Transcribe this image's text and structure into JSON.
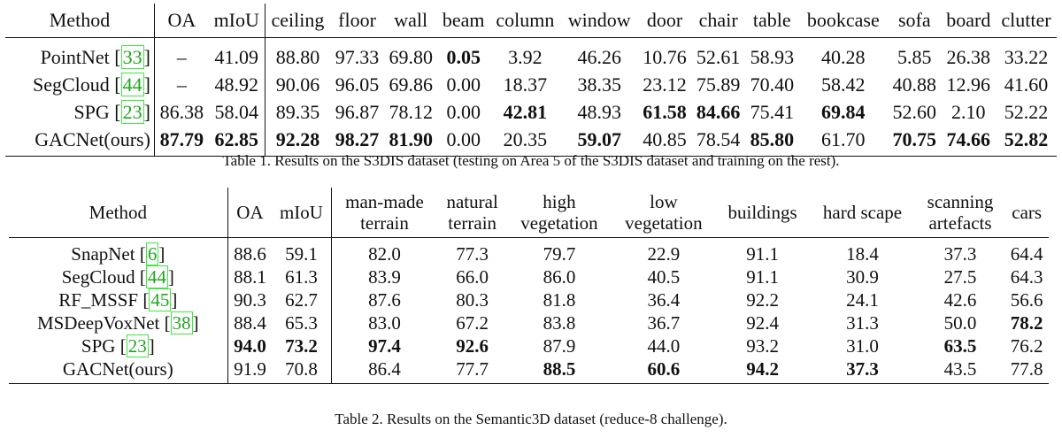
{
  "table1": {
    "headers": [
      "Method",
      "OA",
      "mIoU",
      "ceiling",
      "floor",
      "wall",
      "beam",
      "column",
      "window",
      "door",
      "chair",
      "table",
      "bookcase",
      "sofa",
      "board",
      "clutter"
    ],
    "rows": [
      {
        "name": "PointNet",
        "ref": "33",
        "values": [
          "–",
          "41.09",
          "88.80",
          "97.33",
          "69.80",
          "0.05",
          "3.92",
          "46.26",
          "10.76",
          "52.61",
          "58.93",
          "40.28",
          "5.85",
          "26.38",
          "33.22"
        ],
        "bold": [
          5
        ]
      },
      {
        "name": "SegCloud",
        "ref": "44",
        "values": [
          "–",
          "48.92",
          "90.06",
          "96.05",
          "69.86",
          "0.00",
          "18.37",
          "38.35",
          "23.12",
          "75.89",
          "70.40",
          "58.42",
          "40.88",
          "12.96",
          "41.60"
        ],
        "bold": []
      },
      {
        "name": "SPG",
        "ref": "23",
        "values": [
          "86.38",
          "58.04",
          "89.35",
          "96.87",
          "78.12",
          "0.00",
          "42.81",
          "48.93",
          "61.58",
          "84.66",
          "75.41",
          "69.84",
          "52.60",
          "2.10",
          "52.22"
        ],
        "bold": [
          6,
          8,
          9,
          11
        ]
      },
      {
        "name": "GACNet(ours)",
        "ref": "",
        "values": [
          "87.79",
          "62.85",
          "92.28",
          "98.27",
          "81.90",
          "0.00",
          "20.35",
          "59.07",
          "40.85",
          "78.54",
          "85.80",
          "61.70",
          "70.75",
          "74.66",
          "52.82"
        ],
        "bold": [
          0,
          1,
          2,
          3,
          4,
          7,
          10,
          12,
          13,
          14
        ]
      }
    ],
    "caption": "Table 1. Results on the S3DIS dataset (testing on Area 5 of the S3DIS dataset and training on the rest)."
  },
  "table2": {
    "headers": [
      [
        "Method"
      ],
      [
        "OA"
      ],
      [
        "mIoU"
      ],
      [
        "man-made",
        "terrain"
      ],
      [
        "natural",
        "terrain"
      ],
      [
        "high",
        "vegetation"
      ],
      [
        "low",
        "vegetation"
      ],
      [
        "buildings"
      ],
      [
        "hard scape"
      ],
      [
        "scanning",
        "artefacts"
      ],
      [
        "cars"
      ]
    ],
    "rows": [
      {
        "name": "SnapNet",
        "ref": "6",
        "values": [
          "88.6",
          "59.1",
          "82.0",
          "77.3",
          "79.7",
          "22.9",
          "91.1",
          "18.4",
          "37.3",
          "64.4"
        ],
        "bold": []
      },
      {
        "name": "SegCloud",
        "ref": "44",
        "values": [
          "88.1",
          "61.3",
          "83.9",
          "66.0",
          "86.0",
          "40.5",
          "91.1",
          "30.9",
          "27.5",
          "64.3"
        ],
        "bold": []
      },
      {
        "name": "RF_MSSF",
        "ref": "45",
        "values": [
          "90.3",
          "62.7",
          "87.6",
          "80.3",
          "81.8",
          "36.4",
          "92.2",
          "24.1",
          "42.6",
          "56.6"
        ],
        "bold": []
      },
      {
        "name": "MSDeepVoxNet",
        "ref": "38",
        "values": [
          "88.4",
          "65.3",
          "83.0",
          "67.2",
          "83.8",
          "36.7",
          "92.4",
          "31.3",
          "50.0",
          "78.2"
        ],
        "bold": [
          9
        ]
      },
      {
        "name": "SPG",
        "ref": "23",
        "values": [
          "94.0",
          "73.2",
          "97.4",
          "92.6",
          "87.9",
          "44.0",
          "93.2",
          "31.0",
          "63.5",
          "76.2"
        ],
        "bold": [
          0,
          1,
          2,
          3,
          8
        ]
      },
      {
        "name": "GACNet(ours)",
        "ref": "",
        "values": [
          "91.9",
          "70.8",
          "86.4",
          "77.7",
          "88.5",
          "60.6",
          "94.2",
          "37.3",
          "43.5",
          "77.8"
        ],
        "bold": [
          4,
          5,
          6,
          7
        ]
      }
    ],
    "caption": "Table 2. Results on the Semantic3D dataset (reduce-8 challenge)."
  }
}
